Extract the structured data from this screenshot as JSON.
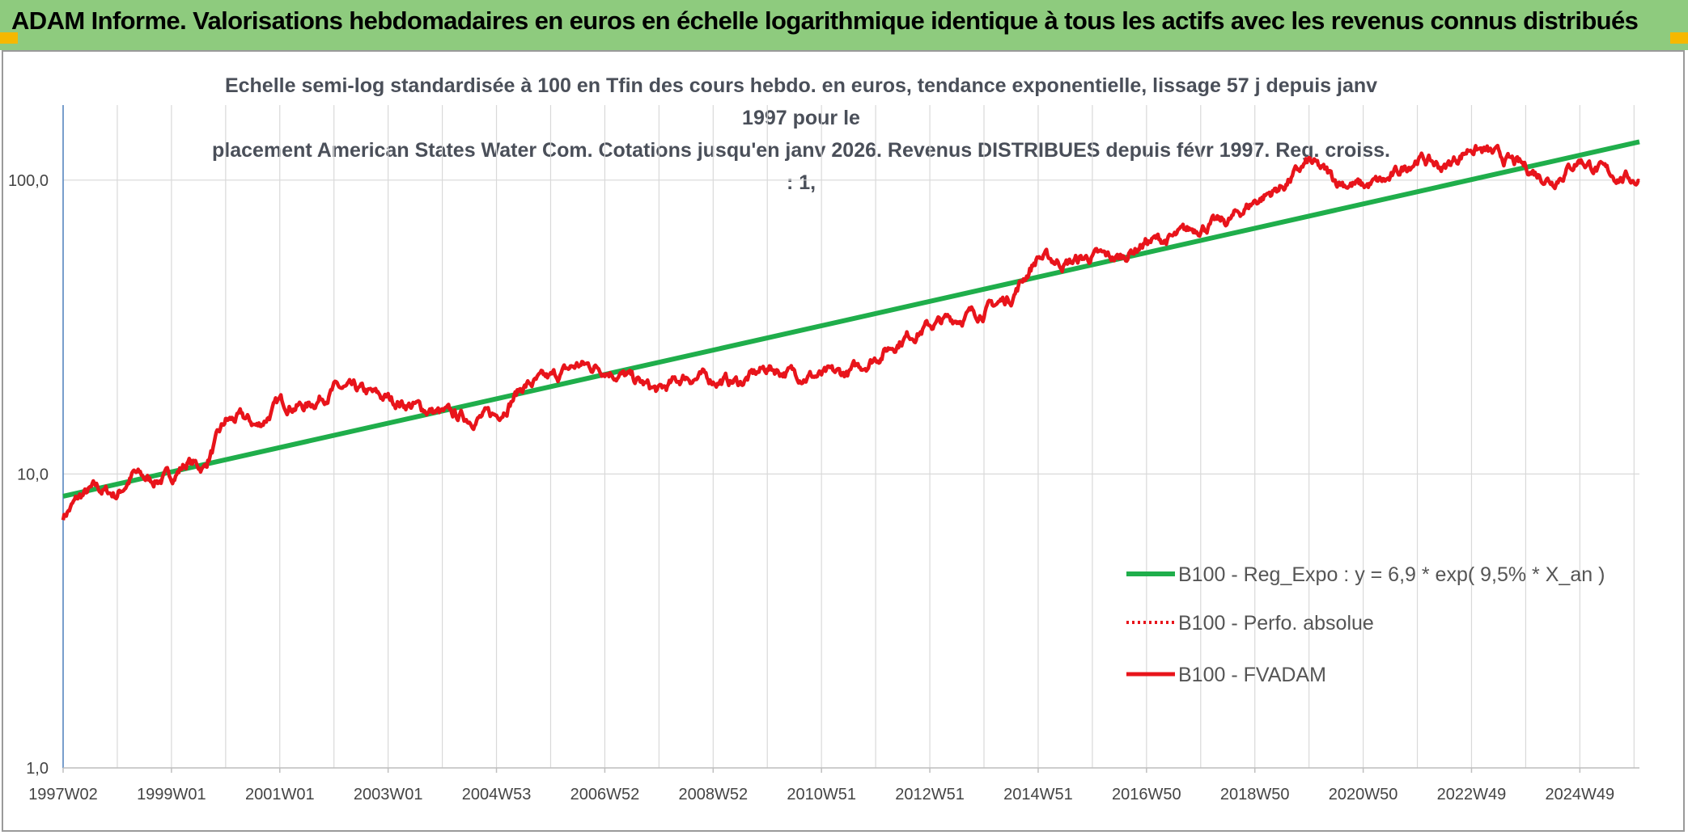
{
  "banner": {
    "title": "ADAM Informe. Valorisations hebdomadaires en euros en échelle logarithmique identique à tous les actifs avec les revenus connus distribués"
  },
  "colors": {
    "banner_bg": "#8ecb7e",
    "corner": "#f5b800",
    "trend": "#1fae4b",
    "fvadam": "#e8141b",
    "grid": "#d9d9d9",
    "axis": "#4f81bd"
  },
  "chart_data": {
    "type": "line",
    "title": "Echelle semi-log standardisée à 100 en Tfin des cours hebdo. en euros, tendance exponentielle, lissage 57 j depuis janv 1997 pour le placement American States Water Com. Cotations jusqu'en janv 2026. Revenus DISTRIBUES depuis févr 1997. Reg. croiss. : 1,",
    "title_lines": [
      "Echelle semi-log standardisée à 100 en Tfin des cours hebdo. en euros, tendance exponentielle, lissage 57 j depuis janv 1997 pour le",
      "placement American States Water Com. Cotations jusqu'en janv 2026. Revenus DISTRIBUES depuis févr 1997. Reg. croiss. : 1,"
    ],
    "y_scale": "log",
    "ylim": [
      1,
      180
    ],
    "y_ticks": [
      {
        "value": 1,
        "label": "1,0"
      },
      {
        "value": 10,
        "label": "10,0"
      },
      {
        "value": 100,
        "label": "100,0"
      }
    ],
    "xlim": [
      1997.0,
      2026.1
    ],
    "x_ticks": [
      {
        "value": 1997.0,
        "label": "1997W02"
      },
      {
        "value": 1999.0,
        "label": "1999W01"
      },
      {
        "value": 2001.0,
        "label": "2001W01"
      },
      {
        "value": 2003.0,
        "label": "2003W01"
      },
      {
        "value": 2005.0,
        "label": "2004W53"
      },
      {
        "value": 2007.0,
        "label": "2006W52"
      },
      {
        "value": 2009.0,
        "label": "2008W52"
      },
      {
        "value": 2011.0,
        "label": "2010W51"
      },
      {
        "value": 2013.0,
        "label": "2012W51"
      },
      {
        "value": 2015.0,
        "label": "2014W51"
      },
      {
        "value": 2017.0,
        "label": "2016W50"
      },
      {
        "value": 2019.0,
        "label": "2018W50"
      },
      {
        "value": 2021.0,
        "label": "2020W50"
      },
      {
        "value": 2023.0,
        "label": "2022W49"
      },
      {
        "value": 2025.0,
        "label": "2024W49"
      }
    ],
    "grid": "vertical and horizontal",
    "legend_position": "bottom-right",
    "series": [
      {
        "name": "B100 - Reg_Expo : y = 6,9 * exp( 9,5% *  X_an )",
        "style": "solid",
        "x": [
          1997.0,
          2026.1
        ],
        "y": [
          8.4,
          135
        ]
      },
      {
        "name": "B100 - Perfo. absolue",
        "style": "dotted",
        "x": [],
        "y": []
      },
      {
        "name": "B100 - FVADAM",
        "style": "solid",
        "x": [
          1997.0,
          1997.3,
          1997.6,
          1998.0,
          1998.3,
          1998.6,
          1999.0,
          1999.3,
          1999.6,
          2000.0,
          2000.3,
          2000.6,
          2001.0,
          2001.5,
          2002.0,
          2002.5,
          2003.0,
          2003.5,
          2004.0,
          2004.5,
          2005.0,
          2005.5,
          2006.0,
          2006.5,
          2007.0,
          2007.5,
          2008.0,
          2008.5,
          2009.0,
          2009.5,
          2010.0,
          2010.5,
          2011.0,
          2011.5,
          2012.0,
          2012.5,
          2013.0,
          2013.5,
          2014.0,
          2014.5,
          2015.0,
          2015.5,
          2016.0,
          2016.5,
          2017.0,
          2017.5,
          2018.0,
          2018.5,
          2019.0,
          2019.5,
          2020.0,
          2020.5,
          2021.0,
          2021.5,
          2022.0,
          2022.5,
          2023.0,
          2023.5,
          2024.0,
          2024.5,
          2025.0,
          2025.5,
          2026.1
        ],
        "y": [
          7.2,
          8.3,
          8.9,
          8.5,
          10.0,
          9.5,
          9.8,
          11.0,
          10.5,
          15.0,
          15.5,
          14.5,
          17.5,
          17.0,
          19.5,
          19.0,
          18.0,
          17.0,
          16.0,
          15.5,
          15.8,
          20.0,
          21.0,
          23.5,
          23.0,
          21.0,
          19.0,
          21.5,
          21.0,
          20.5,
          23.0,
          22.0,
          21.5,
          22.0,
          25.0,
          29.0,
          32.0,
          34.0,
          36.0,
          40.0,
          55.0,
          52.0,
          55.0,
          54.0,
          62.0,
          63.0,
          70.0,
          72.0,
          85.0,
          95.0,
          115.0,
          100.0,
          95.0,
          100.0,
          120.0,
          110.0,
          130.0,
          120.0,
          110.0,
          100.0,
          118.0,
          105.0,
          100.0
        ]
      }
    ]
  }
}
